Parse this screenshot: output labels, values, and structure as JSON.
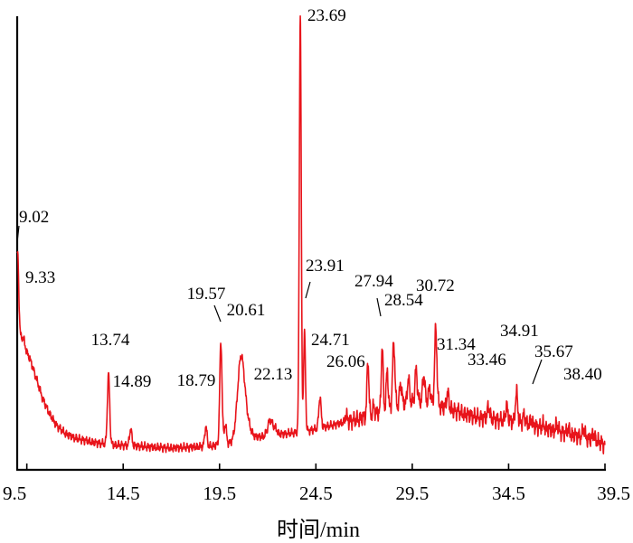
{
  "chart_data": {
    "type": "line",
    "xlabel": "时间/min",
    "ylabel": "",
    "title": "",
    "xlim": [
      9.0,
      39.5
    ],
    "ylim": [
      0,
      100
    ],
    "x_ticks": [
      "9.5",
      "14.5",
      "19.5",
      "24.5",
      "29.5",
      "34.5",
      "39.5"
    ],
    "x_tick_values": [
      9.5,
      14.5,
      19.5,
      24.5,
      29.5,
      34.5,
      39.5
    ],
    "grid": false,
    "line_color": "#e8141b",
    "baseline": [
      [
        9.0,
        31
      ],
      [
        9.2,
        29
      ],
      [
        9.4,
        27
      ],
      [
        9.7,
        24
      ],
      [
        10.0,
        20
      ],
      [
        10.3,
        16
      ],
      [
        10.6,
        13
      ],
      [
        11.0,
        10
      ],
      [
        11.5,
        8
      ],
      [
        12.0,
        7
      ],
      [
        12.5,
        6.5
      ],
      [
        13.0,
        6
      ],
      [
        14.0,
        5.5
      ],
      [
        15.0,
        5.3
      ],
      [
        16.0,
        5.0
      ],
      [
        17.0,
        4.8
      ],
      [
        18.0,
        5.0
      ],
      [
        19.0,
        5.2
      ],
      [
        20.0,
        5.8
      ],
      [
        21.0,
        7.0
      ],
      [
        22.0,
        7.5
      ],
      [
        23.0,
        8.0
      ],
      [
        24.0,
        8.5
      ],
      [
        25.0,
        9.5
      ],
      [
        26.0,
        10.5
      ],
      [
        27.0,
        11.5
      ],
      [
        28.0,
        13.0
      ],
      [
        29.0,
        14.5
      ],
      [
        30.0,
        15.0
      ],
      [
        31.0,
        14.0
      ],
      [
        32.0,
        12.5
      ],
      [
        33.0,
        11.5
      ],
      [
        34.0,
        11.0
      ],
      [
        35.0,
        10.5
      ],
      [
        36.0,
        9.5
      ],
      [
        37.0,
        8.5
      ],
      [
        38.0,
        7.5
      ],
      [
        39.0,
        6.5
      ],
      [
        39.5,
        5.5
      ]
    ],
    "peaks": [
      {
        "x": 9.02,
        "h": 48,
        "w": 0.06
      },
      {
        "x": 9.33,
        "h": 29,
        "w": 0.06
      },
      {
        "x": 13.74,
        "h": 21,
        "w": 0.06
      },
      {
        "x": 14.89,
        "h": 9,
        "w": 0.06
      },
      {
        "x": 18.79,
        "h": 9.5,
        "w": 0.06
      },
      {
        "x": 19.57,
        "h": 28,
        "w": 0.06
      },
      {
        "x": 19.8,
        "h": 10,
        "w": 0.06
      },
      {
        "x": 20.61,
        "h": 24,
        "w": 0.18
      },
      {
        "x": 20.9,
        "h": 10,
        "w": 0.2
      },
      {
        "x": 22.13,
        "h": 11,
        "w": 0.12
      },
      {
        "x": 22.4,
        "h": 9,
        "w": 0.1
      },
      {
        "x": 23.69,
        "h": 100,
        "w": 0.05
      },
      {
        "x": 23.91,
        "h": 30,
        "w": 0.05
      },
      {
        "x": 24.71,
        "h": 16,
        "w": 0.06
      },
      {
        "x": 26.06,
        "h": 12,
        "w": 0.06
      },
      {
        "x": 27.2,
        "h": 24,
        "w": 0.05
      },
      {
        "x": 27.5,
        "h": 14,
        "w": 0.05
      },
      {
        "x": 27.94,
        "h": 27,
        "w": 0.05
      },
      {
        "x": 28.2,
        "h": 22,
        "w": 0.05
      },
      {
        "x": 28.54,
        "h": 28,
        "w": 0.06
      },
      {
        "x": 28.9,
        "h": 19,
        "w": 0.06
      },
      {
        "x": 29.3,
        "h": 20,
        "w": 0.06
      },
      {
        "x": 29.7,
        "h": 22,
        "w": 0.06
      },
      {
        "x": 30.1,
        "h": 21,
        "w": 0.06
      },
      {
        "x": 30.4,
        "h": 18,
        "w": 0.06
      },
      {
        "x": 30.72,
        "h": 31,
        "w": 0.06
      },
      {
        "x": 31.34,
        "h": 17,
        "w": 0.06
      },
      {
        "x": 31.9,
        "h": 13,
        "w": 0.06
      },
      {
        "x": 32.5,
        "h": 12,
        "w": 0.06
      },
      {
        "x": 33.46,
        "h": 14,
        "w": 0.06
      },
      {
        "x": 33.8,
        "h": 11,
        "w": 0.06
      },
      {
        "x": 34.4,
        "h": 14,
        "w": 0.06
      },
      {
        "x": 34.91,
        "h": 17,
        "w": 0.06
      },
      {
        "x": 35.3,
        "h": 12,
        "w": 0.06
      },
      {
        "x": 35.67,
        "h": 11,
        "w": 0.06
      },
      {
        "x": 36.3,
        "h": 10,
        "w": 0.06
      },
      {
        "x": 37.0,
        "h": 10,
        "w": 0.06
      },
      {
        "x": 37.6,
        "h": 9,
        "w": 0.06
      },
      {
        "x": 38.4,
        "h": 9,
        "w": 0.06
      },
      {
        "x": 38.9,
        "h": 8,
        "w": 0.06
      }
    ],
    "annotations": [
      {
        "label": "9.02",
        "x": 9.02
      },
      {
        "label": "9.33",
        "x": 9.33
      },
      {
        "label": "13.74",
        "x": 13.74
      },
      {
        "label": "14.89",
        "x": 14.89
      },
      {
        "label": "18.79",
        "x": 18.79
      },
      {
        "label": "19.57",
        "x": 19.57
      },
      {
        "label": "20.61",
        "x": 20.61
      },
      {
        "label": "22.13",
        "x": 22.13
      },
      {
        "label": "23.69",
        "x": 23.69
      },
      {
        "label": "23.91",
        "x": 23.91
      },
      {
        "label": "24.71",
        "x": 24.71
      },
      {
        "label": "26.06",
        "x": 26.06
      },
      {
        "label": "27.94",
        "x": 27.94
      },
      {
        "label": "28.54",
        "x": 28.54
      },
      {
        "label": "30.72",
        "x": 30.72
      },
      {
        "label": "31.34",
        "x": 31.34
      },
      {
        "label": "33.46",
        "x": 33.46
      },
      {
        "label": "34.91",
        "x": 34.91
      },
      {
        "label": "35.67",
        "x": 35.67
      },
      {
        "label": "38.40",
        "x": 38.4
      }
    ]
  }
}
